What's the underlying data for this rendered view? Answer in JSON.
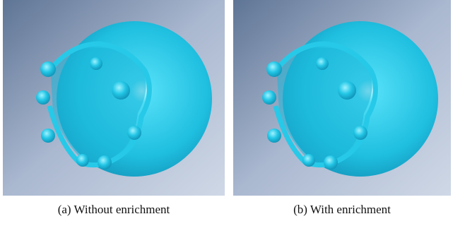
{
  "figure": {
    "panels": [
      {
        "caption": "(a) Without enrichment"
      },
      {
        "caption": "(b) With enrichment"
      }
    ]
  }
}
